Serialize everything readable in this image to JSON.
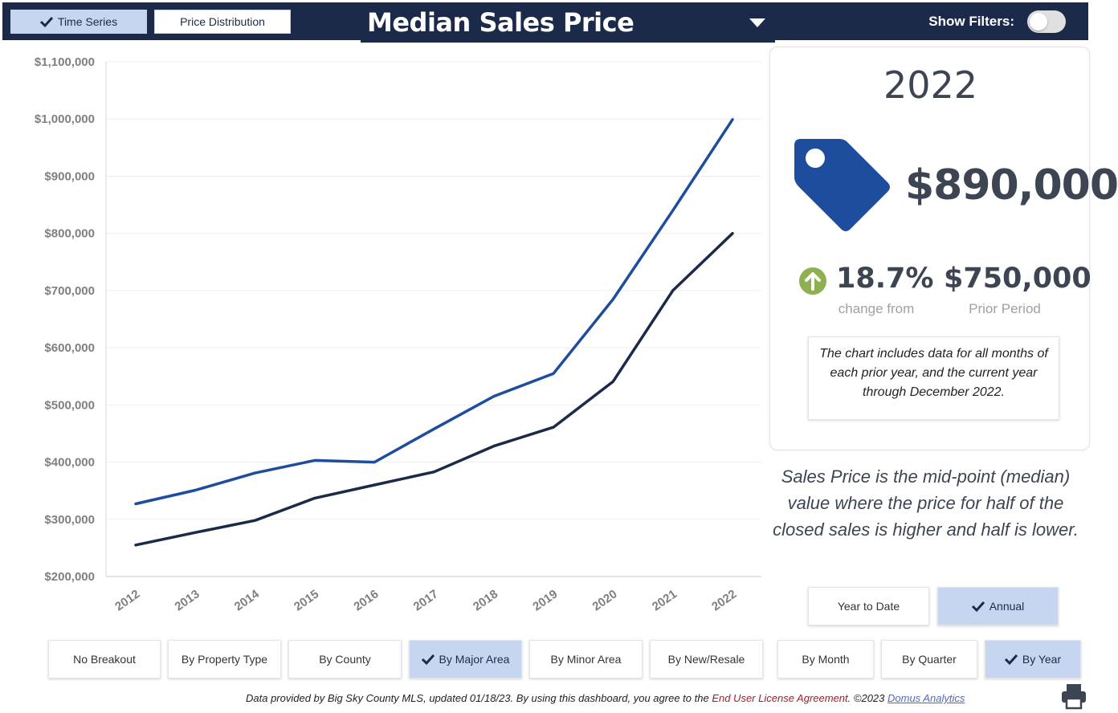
{
  "header": {
    "view_tabs": [
      {
        "label": "Time Series",
        "active": true
      },
      {
        "label": "Price Distribution",
        "active": false
      }
    ],
    "title": "Median Sales Price",
    "filters_label": "Show Filters:",
    "filters_on": false
  },
  "chart_data": {
    "type": "line",
    "x": [
      "2012",
      "2013",
      "2014",
      "2015",
      "2016",
      "2017",
      "2018",
      "2019",
      "2020",
      "2021",
      "2022"
    ],
    "series": [
      {
        "color": "#1f4d9e",
        "values": [
          327000,
          351000,
          381000,
          403000,
          400000,
          458000,
          515000,
          555000,
          685000,
          840000,
          999000
        ]
      },
      {
        "color": "#1c2a4a",
        "values": [
          255000,
          277000,
          298000,
          337000,
          360000,
          383000,
          428000,
          461000,
          541000,
          700000,
          800000
        ]
      }
    ],
    "ylim": [
      200000,
      1100000
    ],
    "yticks": [
      "$200,000",
      "$300,000",
      "$400,000",
      "$500,000",
      "$600,000",
      "$700,000",
      "$800,000",
      "$900,000",
      "$1,000,000",
      "$1,100,000"
    ],
    "grid": true,
    "title": "",
    "xlabel": "",
    "ylabel": ""
  },
  "kpi": {
    "year": "2022",
    "value": "$890,000",
    "change_pct": "18.7%",
    "change_label": "change from",
    "prior_value": "$750,000",
    "prior_label": "Prior Period",
    "note": "The chart includes data for all months of each prior year, and the current year through December 2022.",
    "tag_color": "#1f4d9e",
    "up_color": "#8db052"
  },
  "definition": "Sales Price is the mid-point (median) value where the price for half of the closed sales is higher and half is lower.",
  "period_buttons": [
    {
      "label": "Year to Date",
      "active": false
    },
    {
      "label": "Annual",
      "active": true
    }
  ],
  "breakout_buttons": [
    {
      "label": "No Breakout",
      "active": false
    },
    {
      "label": "By Property Type",
      "active": false
    },
    {
      "label": "By County",
      "active": false
    },
    {
      "label": "By Major Area",
      "active": true
    },
    {
      "label": "By Minor Area",
      "active": false
    },
    {
      "label": "By New/Resale",
      "active": false
    }
  ],
  "interval_buttons": [
    {
      "label": "By Month",
      "active": false
    },
    {
      "label": "By Quarter",
      "active": false
    },
    {
      "label": "By Year",
      "active": true
    }
  ],
  "footer": {
    "text_before": "Data provided by Big Sky County MLS, updated 01/18/23.  By using this dashboard, you agree to the ",
    "eula_link": "End User License Agreement",
    "text_middle": ".  ©2023 ",
    "domus_link": "Domus Analytics"
  },
  "icons": {
    "check": "check-icon",
    "tag": "price-tag-icon",
    "up": "arrow-up-circle-icon",
    "caret": "caret-down-icon",
    "print": "print-icon"
  }
}
